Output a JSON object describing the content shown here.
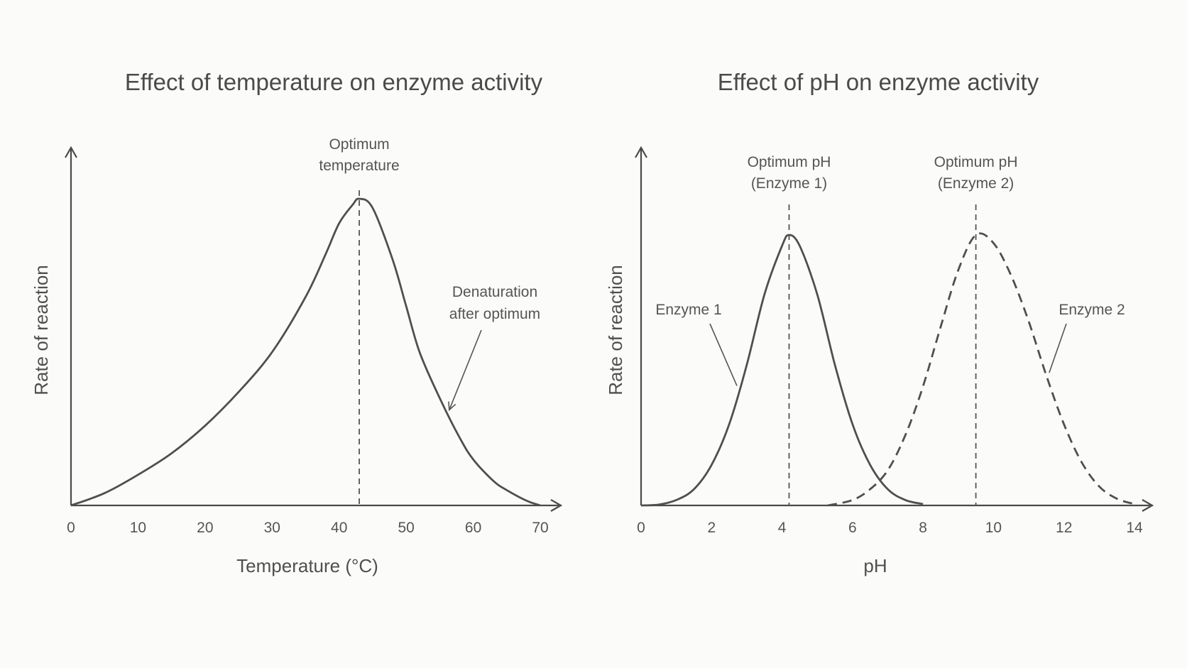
{
  "chart_data": [
    {
      "type": "line",
      "title": "Effect of temperature on enzyme activity",
      "xlabel": "Temperature (°C)",
      "ylabel": "Rate of reaction",
      "xlim": [
        0,
        70
      ],
      "xticks": [
        0,
        10,
        20,
        30,
        40,
        50,
        60,
        70
      ],
      "ylim": [
        0,
        1
      ],
      "grid": false,
      "series": [
        {
          "style": "solid",
          "x": [
            0,
            5,
            10,
            15,
            20,
            25,
            30,
            35,
            38,
            40,
            42,
            43,
            45,
            48,
            50,
            52,
            55,
            58,
            60,
            63,
            65,
            68,
            70
          ],
          "y": [
            0,
            0.04,
            0.1,
            0.17,
            0.26,
            0.37,
            0.5,
            0.68,
            0.82,
            0.92,
            0.98,
            1.0,
            0.97,
            0.8,
            0.65,
            0.5,
            0.35,
            0.22,
            0.15,
            0.08,
            0.05,
            0.015,
            0
          ]
        }
      ],
      "annotations": [
        {
          "text": "Optimum temperature",
          "lines": [
            "Optimum",
            "temperature"
          ],
          "x": 43,
          "kind": "vertical-dashed-line"
        },
        {
          "text": "Denaturation after optimum",
          "lines": [
            "Denaturation",
            "after optimum"
          ],
          "x": 56,
          "kind": "arrow"
        }
      ]
    },
    {
      "type": "line",
      "title": "Effect of pH on enzyme activity",
      "xlabel": "pH",
      "ylabel": "Rate of reaction",
      "xlim": [
        0,
        14
      ],
      "xticks": [
        0,
        2,
        4,
        6,
        8,
        10,
        12,
        14
      ],
      "ylim": [
        0,
        1
      ],
      "grid": false,
      "series": [
        {
          "name": "Enzyme 1",
          "style": "solid",
          "x": [
            0,
            0.5,
            1,
            1.5,
            2,
            2.5,
            3,
            3.5,
            4,
            4.2,
            4.5,
            5,
            5.5,
            6,
            6.5,
            7,
            7.5,
            8
          ],
          "y": [
            0,
            0.003,
            0.02,
            0.06,
            0.15,
            0.3,
            0.52,
            0.78,
            0.96,
            1.0,
            0.96,
            0.78,
            0.52,
            0.3,
            0.15,
            0.06,
            0.02,
            0.005
          ]
        },
        {
          "name": "Enzyme 2",
          "style": "dashed",
          "x": [
            5.3,
            6,
            6.5,
            7,
            7.5,
            8,
            8.5,
            9,
            9.5,
            10,
            10.5,
            11,
            11.5,
            12,
            12.5,
            13,
            13.5,
            14
          ],
          "y": [
            0,
            0.02,
            0.06,
            0.13,
            0.26,
            0.44,
            0.66,
            0.87,
            1.0,
            0.97,
            0.85,
            0.68,
            0.48,
            0.3,
            0.16,
            0.07,
            0.025,
            0.005
          ]
        }
      ],
      "annotations": [
        {
          "text": "Optimum pH (Enzyme 1)",
          "lines": [
            "Optimum pH",
            "(Enzyme 1)"
          ],
          "x": 4.2,
          "kind": "vertical-dashed-line"
        },
        {
          "text": "Optimum pH (Enzyme 2)",
          "lines": [
            "Optimum pH",
            "(Enzyme 2)"
          ],
          "x": 9.5,
          "kind": "vertical-dashed-line"
        },
        {
          "text": "Enzyme 1",
          "kind": "leader",
          "series": 0,
          "x": 2.8
        },
        {
          "text": "Enzyme 2",
          "kind": "leader",
          "series": 1,
          "x": 11.5
        }
      ]
    }
  ],
  "colors": {
    "line": "#4f4f4f",
    "text": "#555555",
    "axis": "#4a4a4a",
    "background": "#fbfbfa"
  }
}
